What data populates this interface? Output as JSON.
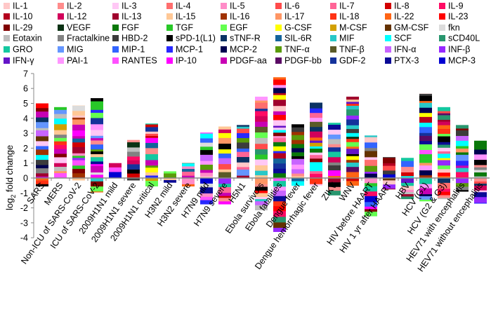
{
  "chart_data": {
    "type": "bar",
    "stacked": true,
    "ylabel": {
      "main": "log",
      "sub": "2",
      "rest": " fold change"
    },
    "ylim": [
      -4,
      7
    ],
    "yticks": [
      -4,
      -3,
      -2,
      -1,
      0,
      1,
      2,
      3,
      4,
      5,
      6,
      7
    ],
    "grid": false,
    "legend_position": "top",
    "legend": [
      {
        "name": "IL-1",
        "color": "#ffc8c8"
      },
      {
        "name": "IL-2",
        "color": "#ff8c8c"
      },
      {
        "name": "IL-3",
        "color": "#ffc8f5"
      },
      {
        "name": "IL-4",
        "color": "#ff6e6e"
      },
      {
        "name": "IL-5",
        "color": "#ff8cc8"
      },
      {
        "name": "IL-6",
        "color": "#ff4b4b"
      },
      {
        "name": "IL-7",
        "color": "#ff6496"
      },
      {
        "name": "IL-8",
        "color": "#d20000"
      },
      {
        "name": "IL-9",
        "color": "#ff0a64"
      },
      {
        "name": "IL-10",
        "color": "#b4001e"
      },
      {
        "name": "IL-12",
        "color": "#d2005a"
      },
      {
        "name": "IL-13",
        "color": "#a0002d"
      },
      {
        "name": "IL-15",
        "color": "#ffc896"
      },
      {
        "name": "IL-16",
        "color": "#a03200"
      },
      {
        "name": "IL-17",
        "color": "#ff9664"
      },
      {
        "name": "IL-18",
        "color": "#ff3214"
      },
      {
        "name": "IL-22",
        "color": "#ff6414"
      },
      {
        "name": "IL-23",
        "color": "#ff0000"
      },
      {
        "name": "IL-29",
        "color": "#800000"
      },
      {
        "name": "VEGF",
        "color": "#0a3214"
      },
      {
        "name": "FGF",
        "color": "#0a780a"
      },
      {
        "name": "TGF",
        "color": "#28c828"
      },
      {
        "name": "EGF",
        "color": "#64ff50"
      },
      {
        "name": "G-CSF",
        "color": "#ffff00"
      },
      {
        "name": "M-CSF",
        "color": "#d2a000"
      },
      {
        "name": "GM-CSF",
        "color": "#643200"
      },
      {
        "name": "fkn",
        "color": "#dcdcdc"
      },
      {
        "name": "Eotaxin",
        "color": "#bebebe"
      },
      {
        "name": "Fractalkine",
        "color": "#828282"
      },
      {
        "name": "HBD-2",
        "color": "#3c3c3c"
      },
      {
        "name": "sPD-1(L1)",
        "color": "#000000"
      },
      {
        "name": "sTNF-R",
        "color": "#0a3264"
      },
      {
        "name": "SIL-6R",
        "color": "#14649b"
      },
      {
        "name": "MIF",
        "color": "#28c8c8"
      },
      {
        "name": "SCF",
        "color": "#00ffff"
      },
      {
        "name": "sCD40L",
        "color": "#28966e"
      },
      {
        "name": "GRO",
        "color": "#14c8a0"
      },
      {
        "name": "MIG",
        "color": "#6496ff"
      },
      {
        "name": "MIP-1",
        "color": "#3264ff"
      },
      {
        "name": "MCP-1",
        "color": "#2828ff"
      },
      {
        "name": "MCP-2",
        "color": "#000050"
      },
      {
        "name": "TNF-α",
        "color": "#5a9b0a"
      },
      {
        "name": "TNF-β",
        "color": "#5a5a28"
      },
      {
        "name": "IFN-α",
        "color": "#c864ff"
      },
      {
        "name": "INF-β",
        "color": "#9628ff"
      },
      {
        "name": "IFN-γ",
        "color": "#6414c8"
      },
      {
        "name": "PAI-1",
        "color": "#ff96ff"
      },
      {
        "name": "RANTES",
        "color": "#ff50ff"
      },
      {
        "name": "IP-10",
        "color": "#ff00ff"
      },
      {
        "name": "PDGF-aa",
        "color": "#c800b4"
      },
      {
        "name": "PDGF-bb",
        "color": "#5a0a64"
      },
      {
        "name": "GDF-2",
        "color": "#14329b"
      },
      {
        "name": "PTX-3",
        "color": "#0a0a96"
      },
      {
        "name": "MCP-3",
        "color": "#0000d2"
      }
    ],
    "categories": [
      "SARS",
      "MERS",
      "Non-ICU of SARS-CoV-2",
      "ICU of SARS-CoV-2",
      "2009H1N1 mild",
      "2009H1N1 severe",
      "2009H1N1 critical",
      "H3N2 mild",
      "H3N2 severe",
      "H7N9 mild",
      "H7N9 severe",
      "H5N1",
      "Ebola survivors",
      "Ebola fatalities",
      "Dengue fever",
      "Dengue hemorrhagic fever",
      "ZIKV",
      "WNV",
      "HIV before HAART",
      "HIV 1 yr after HAART",
      "HBV",
      "HCV (G1)",
      "HCV (G2 & G3)",
      "HEV71 with encephalitis",
      "HEV71 without encephalitis"
    ],
    "positive_total": [
      5.0,
      4.75,
      4.85,
      5.35,
      1.0,
      2.55,
      3.65,
      0.45,
      1.0,
      3.05,
      3.45,
      3.55,
      5.45,
      6.75,
      3.6,
      5.05,
      3.7,
      5.45,
      2.85,
      1.4,
      1.35,
      5.65,
      4.75,
      3.55,
      2.5
    ],
    "negative_total": [
      -0.55,
      0,
      -0.15,
      -0.95,
      0,
      -0.15,
      -0.55,
      -0.3,
      -0.55,
      -1.75,
      -1.75,
      0,
      -2.15,
      -3.6,
      -0.5,
      -0.5,
      -1.15,
      -0.5,
      -2.55,
      -0.75,
      -1.4,
      -1.55,
      -1.4,
      -0.9,
      -1.7
    ]
  }
}
